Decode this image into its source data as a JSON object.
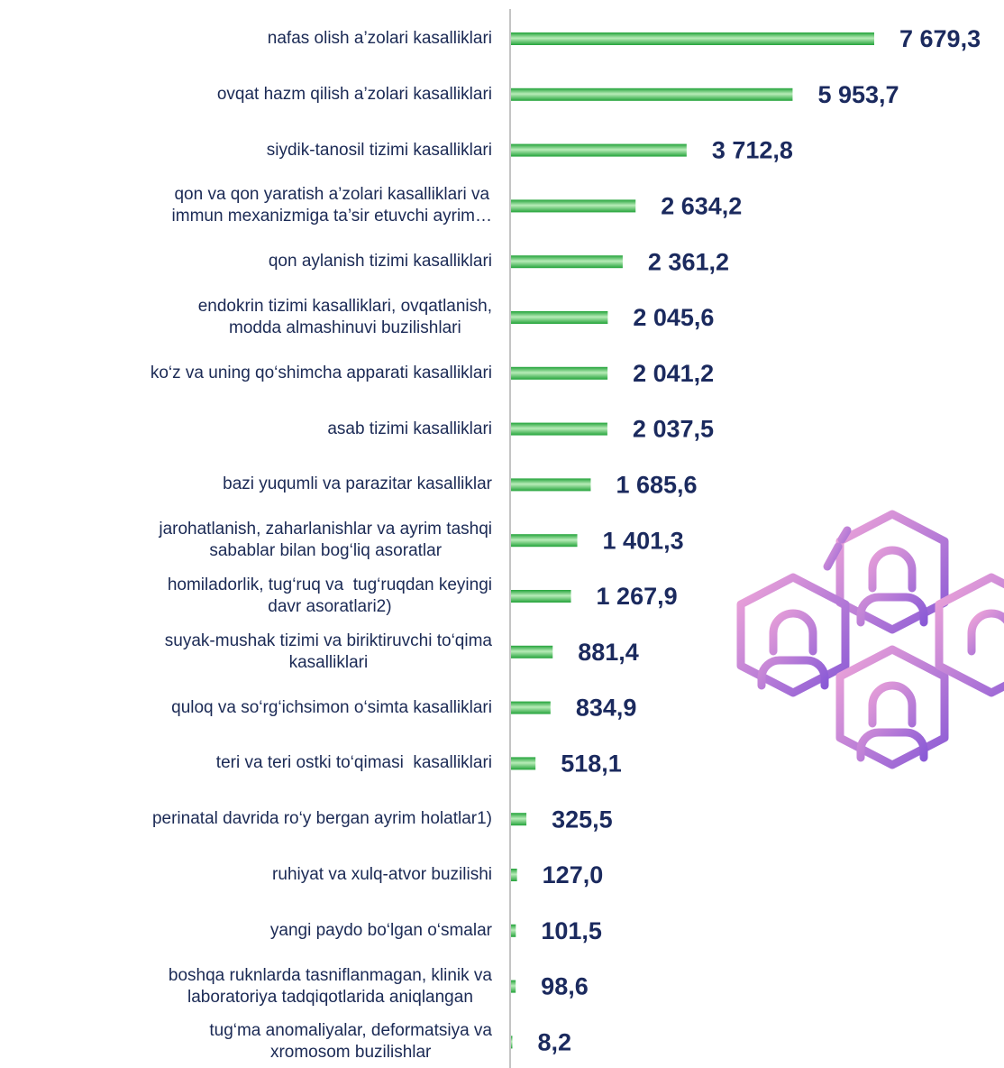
{
  "chart_data": {
    "type": "hbar",
    "categories": [
      "nafas olish a’zolari kasalliklari",
      "ovqat hazm qilish a’zolari kasalliklari",
      "siydik-tanosil tizimi kasalliklari",
      "qon va qon yaratish a’zolari kasalliklari va\nimmun mexanizmiga ta’sir etuvchi ayrim…",
      "qon aylanish tizimi kasalliklari",
      "endokrin tizimi kasalliklari, ovqatlanish,\nmodda almashinuvi buzilishlari",
      "ko‘z va uning qo‘shimcha apparati kasalliklari",
      "asab tizimi kasalliklari",
      "bazi yuqumli va parazitar kasalliklar",
      "jarohatlanish, zaharlanishlar va ayrim tashqi\nsabablar bilan bog‘liq asoratlar",
      "homiladorlik, tug‘ruq va  tug‘ruqdan keyingi\ndavr asoratlari2)",
      "suyak-mushak tizimi va biriktiruvchi to‘qima\nkasalliklari",
      "quloq va so‘rg‘ichsimon o‘simta kasalliklari",
      "teri va teri ostki to‘qimasi  kasalliklari",
      "perinatal davrida ro‘y bergan ayrim holatlar1)",
      "ruhiyat va xulq-atvor buzilishi",
      "yangi paydo bo‘lgan o‘smalar",
      "boshqa ruknlarda tasniflanmagan, klinik va\nlaboratoriya tadqiqotlarida aniqlangan",
      "tug‘ma anomaliyalar, deformatsiya va\nxromosom buzilishlar"
    ],
    "values": [
      7679.3,
      5953.7,
      3712.8,
      2634.2,
      2361.2,
      2045.6,
      2041.2,
      2037.5,
      1685.6,
      1401.3,
      1267.9,
      881.4,
      834.9,
      518.1,
      325.5,
      127.0,
      101.5,
      98.6,
      8.2
    ],
    "value_labels": [
      "7 679,3",
      "5 953,7",
      "3 712,8",
      "2 634,2",
      "2 361,2",
      "2 045,6",
      "2 041,2",
      "2 037,5",
      "1 685,6",
      "1 401,3",
      "1 267,9",
      "881,4",
      "834,9",
      "518,1",
      "325,5",
      "127,0",
      "101,5",
      "98,6",
      "8,2"
    ],
    "color": "#23a33a"
  }
}
